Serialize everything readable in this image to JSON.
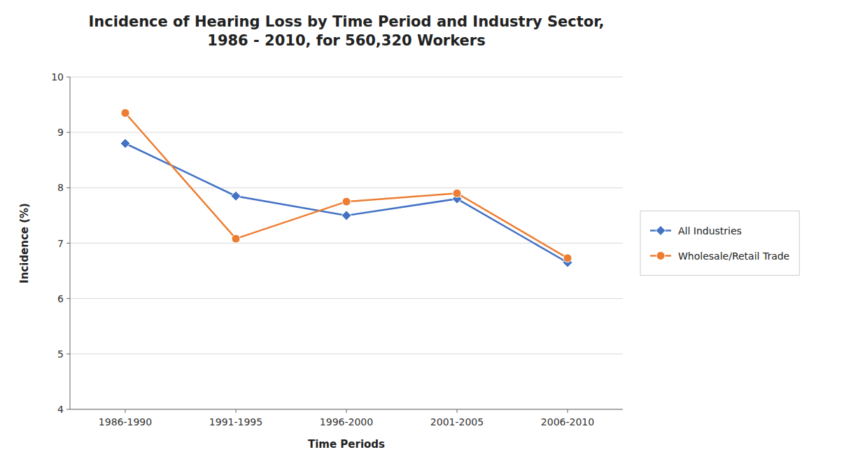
{
  "chart_data": {
    "type": "line",
    "title": "Incidence of Hearing Loss by Time Period and Industry Sector,\n1986 - 2010, for 560,320 Workers",
    "x_label": "Time Periods",
    "y_label": "Incidence (%)",
    "categories": [
      "1986-1990",
      "1991-1995",
      "1996-2000",
      "2001-2005",
      "2006-2010"
    ],
    "series": [
      {
        "name": "All Industries",
        "color": "#4472C4",
        "marker": "diamond",
        "values": [
          8.8,
          7.85,
          7.5,
          7.8,
          6.65
        ]
      },
      {
        "name": "Wholesale/Retail Trade",
        "color": "#ED7D31",
        "marker": "circle",
        "values": [
          9.35,
          7.08,
          7.75,
          7.9,
          6.73
        ]
      }
    ],
    "ylim": [
      4,
      10
    ],
    "yticks": [
      4,
      5,
      6,
      7,
      8,
      9,
      10
    ],
    "grid": true,
    "legend": "right"
  }
}
